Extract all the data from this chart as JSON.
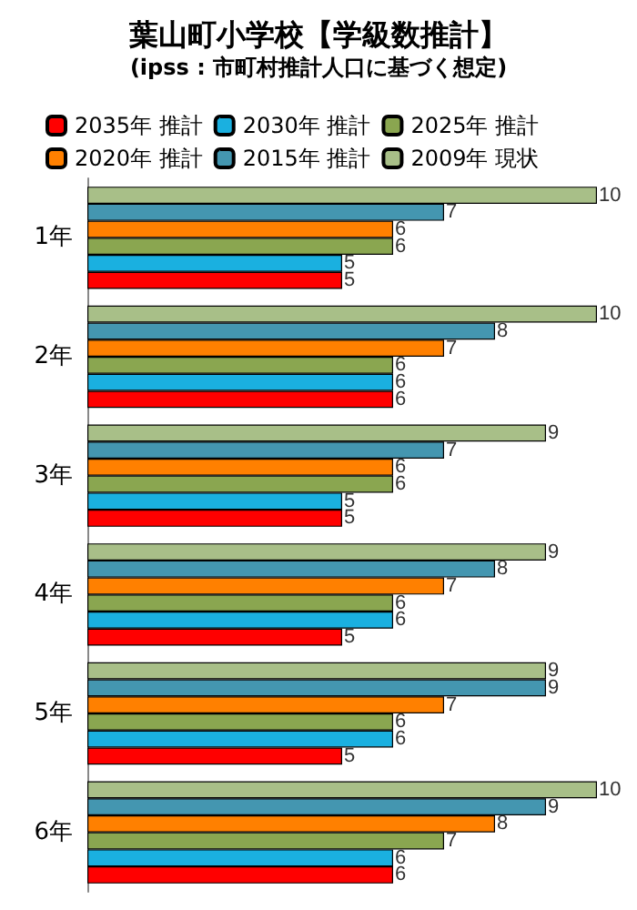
{
  "chart_data": {
    "type": "bar",
    "orientation": "horizontal",
    "title": "葉山町小学校【学級数推計】",
    "subtitle": "(ipss : 市町村推計人口に基づく想定)",
    "categories": [
      "1年",
      "2年",
      "3年",
      "4年",
      "5年",
      "6年"
    ],
    "data_labels": true,
    "legend": "top",
    "series": [
      {
        "name": "2009年 現状",
        "color": "#a8bf88",
        "values": [
          10,
          10,
          9,
          9,
          9,
          10
        ]
      },
      {
        "name": "2015年 推計",
        "color": "#4496b0",
        "values": [
          7,
          8,
          7,
          8,
          9,
          9
        ]
      },
      {
        "name": "2020年 推計",
        "color": "#ff8000",
        "values": [
          6,
          7,
          6,
          7,
          7,
          8
        ]
      },
      {
        "name": "2025年 推計",
        "color": "#8aa650",
        "values": [
          6,
          6,
          6,
          6,
          6,
          7
        ]
      },
      {
        "name": "2030年 推計",
        "color": "#1ab0e0",
        "values": [
          5,
          6,
          5,
          6,
          6,
          6
        ]
      },
      {
        "name": "2035年 推計",
        "color": "#ff0000",
        "values": [
          5,
          6,
          5,
          5,
          5,
          6
        ]
      }
    ]
  }
}
